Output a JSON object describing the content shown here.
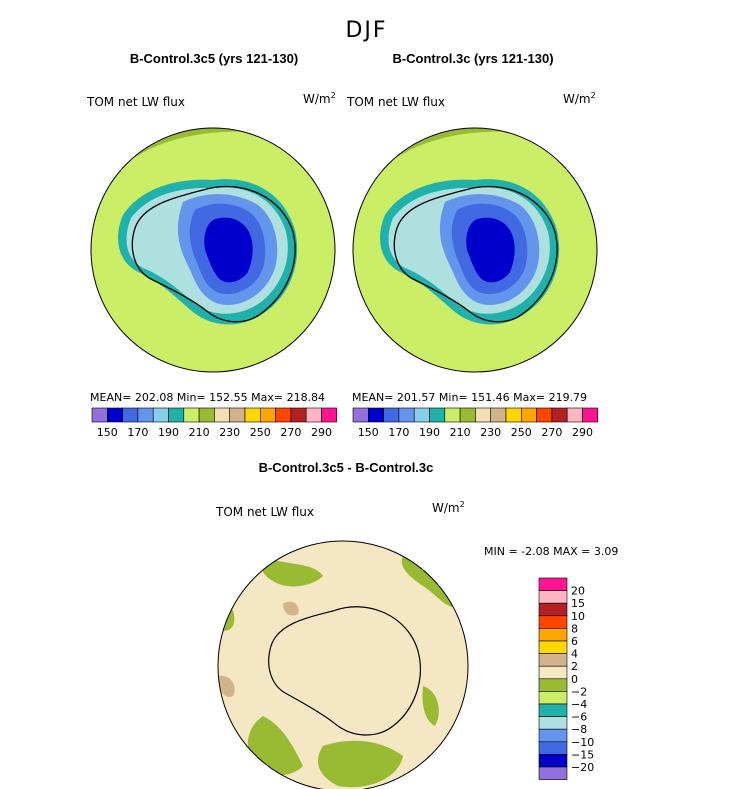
{
  "season": "DJF",
  "panels": {
    "left": {
      "title": "B-Control.3c5 (yrs 121-130)",
      "variable": "TOM net LW flux",
      "units": "W/m",
      "units_exp": "2",
      "stats": "MEAN= 202.08   Min= 152.55   Max= 218.84"
    },
    "right": {
      "title": "B-Control.3c (yrs 121-130)",
      "variable": "TOM net LW flux",
      "units": "W/m",
      "units_exp": "2",
      "stats": "MEAN= 201.57   Min= 151.46   Max= 219.79"
    },
    "diff": {
      "title": "B-Control.3c5 - B-Control.3c",
      "variable": "TOM net LW flux",
      "units": "W/m",
      "units_exp": "2",
      "stats": "MIN =   -2.08 MAX =    3.09"
    }
  },
  "chart_data": [
    {
      "type": "heatmap",
      "name": "B-Control.3c5 (yrs 121-130)",
      "projection": "south polar stereographic",
      "variable": "TOM net LW flux",
      "units": "W/m2",
      "mean": 202.08,
      "min": 152.55,
      "max": 218.84,
      "colorbar_levels": [
        150,
        160,
        170,
        180,
        190,
        200,
        210,
        220,
        230,
        240,
        250,
        260,
        270,
        280,
        290
      ],
      "colorbar_ticks": [
        "150",
        "170",
        "190",
        "210",
        "230",
        "250",
        "270",
        "290"
      ],
      "colorbar_colors": [
        "#9370db",
        "#0000cd",
        "#4169e1",
        "#6495ed",
        "#87ceeb",
        "#20b2aa",
        "#ccee66",
        "#99bb33",
        "#f5deb3",
        "#d2b48c",
        "#ffd700",
        "#ffa500",
        "#ff4500",
        "#b22222",
        "#ffb6c1",
        "#ff1493"
      ]
    },
    {
      "type": "heatmap",
      "name": "B-Control.3c (yrs 121-130)",
      "projection": "south polar stereographic",
      "variable": "TOM net LW flux",
      "units": "W/m2",
      "mean": 201.57,
      "min": 151.46,
      "max": 219.79,
      "colorbar_levels": [
        150,
        160,
        170,
        180,
        190,
        200,
        210,
        220,
        230,
        240,
        250,
        260,
        270,
        280,
        290
      ],
      "colorbar_ticks": [
        "150",
        "170",
        "190",
        "210",
        "230",
        "250",
        "270",
        "290"
      ],
      "colorbar_colors": [
        "#9370db",
        "#0000cd",
        "#4169e1",
        "#6495ed",
        "#87ceeb",
        "#20b2aa",
        "#ccee66",
        "#99bb33",
        "#f5deb3",
        "#d2b48c",
        "#ffd700",
        "#ffa500",
        "#ff4500",
        "#b22222",
        "#ffb6c1",
        "#ff1493"
      ]
    },
    {
      "type": "heatmap",
      "name": "B-Control.3c5 - B-Control.3c",
      "projection": "south polar stereographic",
      "variable": "TOM net LW flux",
      "units": "W/m2",
      "min": -2.08,
      "max": 3.09,
      "colorbar_ticks": [
        "20",
        "15",
        "10",
        "8",
        "6",
        "4",
        "2",
        "0",
        "−2",
        "−4",
        "−6",
        "−8",
        "−10",
        "−15",
        "−20"
      ],
      "colorbar_colors": [
        "#ff1493",
        "#ffb6c1",
        "#b22222",
        "#ff4500",
        "#ffa500",
        "#ffd700",
        "#d2b48c",
        "#f5e6c4",
        "#99bb33",
        "#ccee66",
        "#20b2aa",
        "#aee0e0",
        "#6495ed",
        "#4169e1",
        "#0000cd",
        "#9370db"
      ]
    }
  ]
}
